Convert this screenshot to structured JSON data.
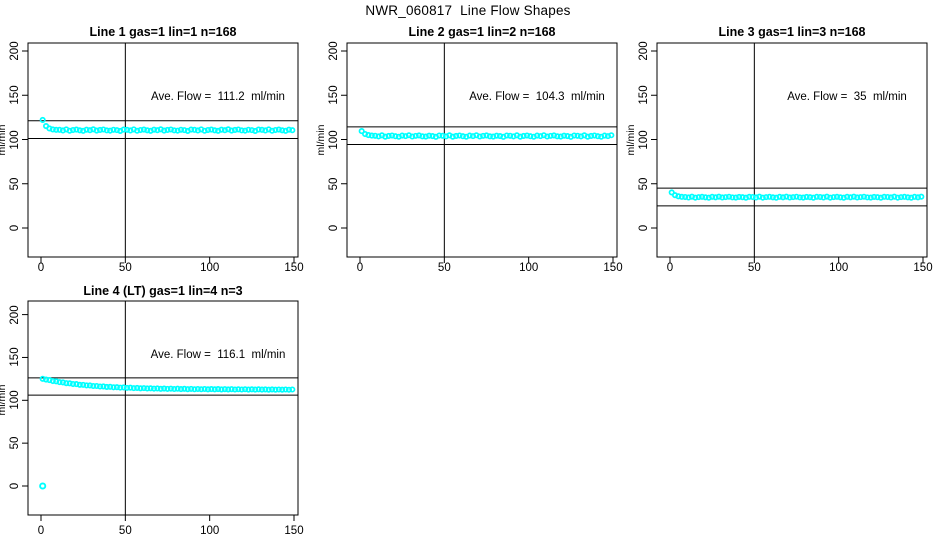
{
  "title": "NWR_060817  Line Flow Shapes",
  "chart_data": [
    {
      "type": "scatter",
      "title": "Line 1 gas=1 lin=1 n=168",
      "annotation": "Ave. Flow =  111.2  ml/min",
      "ave_flow_ml_min": 111.2,
      "n": 168,
      "ylabel": "ml/min",
      "x_ticks": [
        0,
        50,
        100,
        150
      ],
      "y_ticks": [
        0,
        50,
        100,
        150,
        200
      ],
      "xlim": [
        -8,
        160
      ],
      "ylim": [
        -33,
        209
      ],
      "grid": false,
      "marker_color": "#00FFFF",
      "line_color": "#000000",
      "ref_line_x": 50,
      "ref_lines_y": [
        101.2,
        121.2
      ],
      "x_start": 1,
      "x_step": 2,
      "y": [
        122.1,
        115.2,
        112.5,
        111.4,
        110.9,
        110.9,
        110.2,
        111.4,
        109.9,
        110.7,
        111.2,
        110.4,
        109.8,
        111.1,
        110.5,
        111.5,
        110.1,
        110.8,
        111.3,
        110.3,
        110.0,
        111.0,
        110.6,
        109.7,
        111.2,
        110.9,
        110.2,
        111.4,
        109.9,
        110.7,
        111.2,
        110.4,
        109.8,
        111.1,
        110.5,
        111.5,
        110.1,
        110.8,
        111.3,
        110.3,
        110.0,
        111.0,
        110.6,
        109.7,
        111.2,
        110.9,
        110.2,
        111.4,
        109.9,
        110.7,
        111.2,
        110.4,
        109.8,
        111.1,
        110.5,
        111.5,
        110.1,
        110.8,
        111.3,
        110.3,
        110.0,
        111.0,
        110.6,
        109.7,
        111.2,
        110.9,
        110.2,
        111.4,
        109.9,
        110.7,
        111.2,
        110.4,
        109.8,
        111.1,
        110.5
      ]
    },
    {
      "type": "scatter",
      "title": "Line 2 gas=1 lin=2 n=168",
      "annotation": "Ave. Flow =  104.3  ml/min",
      "ave_flow_ml_min": 104.3,
      "n": 168,
      "ylabel": "ml/min",
      "x_ticks": [
        0,
        50,
        100,
        150
      ],
      "y_ticks": [
        0,
        50,
        100,
        150,
        200
      ],
      "xlim": [
        -8,
        160
      ],
      "ylim": [
        -33,
        209
      ],
      "grid": false,
      "marker_color": "#00FFFF",
      "line_color": "#000000",
      "ref_line_x": 50,
      "ref_lines_y": [
        94.3,
        114.3
      ],
      "x_start": 1,
      "x_step": 2,
      "y": [
        109.5,
        106.2,
        105.0,
        104.4,
        104.2,
        103.5,
        104.7,
        103.2,
        104.0,
        104.5,
        103.7,
        103.1,
        104.4,
        103.8,
        104.8,
        103.4,
        104.1,
        104.6,
        103.6,
        103.3,
        104.3,
        103.9,
        103.0,
        104.5,
        104.2,
        103.5,
        104.7,
        103.2,
        104.0,
        104.5,
        103.7,
        103.1,
        104.4,
        103.8,
        104.8,
        103.4,
        104.1,
        104.6,
        103.6,
        103.3,
        104.3,
        103.9,
        103.0,
        104.5,
        104.2,
        103.5,
        104.7,
        103.2,
        104.0,
        104.5,
        103.7,
        103.1,
        104.4,
        103.8,
        104.8,
        103.4,
        104.1,
        104.6,
        103.6,
        103.3,
        104.3,
        103.9,
        103.0,
        104.5,
        104.2,
        103.5,
        104.7,
        103.2,
        104.0,
        104.5,
        103.7,
        103.1,
        104.4,
        103.8,
        104.8
      ]
    },
    {
      "type": "scatter",
      "title": "Line 3 gas=1 lin=3 n=168",
      "annotation": "Ave. Flow =  35  ml/min",
      "ave_flow_ml_min": 35,
      "n": 168,
      "ylabel": "ml/min",
      "x_ticks": [
        0,
        50,
        100,
        150
      ],
      "y_ticks": [
        0,
        50,
        100,
        150,
        200
      ],
      "xlim": [
        -8,
        160
      ],
      "ylim": [
        -33,
        209
      ],
      "grid": false,
      "marker_color": "#00FFFF",
      "line_color": "#000000",
      "ref_line_x": 50,
      "ref_lines_y": [
        25,
        45
      ],
      "x_start": 1,
      "x_step": 2,
      "y": [
        40.2,
        37.1,
        35.8,
        35.2,
        35.0,
        34.5,
        35.4,
        34.3,
        34.9,
        35.2,
        34.7,
        34.2,
        35.2,
        34.7,
        35.4,
        34.5,
        34.9,
        35.3,
        34.6,
        34.4,
        35.1,
        34.8,
        34.2,
        35.2,
        35.0,
        34.5,
        35.4,
        34.3,
        34.9,
        35.2,
        34.7,
        34.2,
        35.2,
        34.7,
        35.4,
        34.5,
        34.9,
        35.3,
        34.6,
        34.4,
        35.1,
        34.8,
        34.2,
        35.2,
        35.0,
        34.5,
        35.4,
        34.3,
        34.9,
        35.2,
        34.7,
        34.2,
        35.2,
        34.7,
        35.4,
        34.5,
        34.9,
        35.3,
        34.6,
        34.4,
        35.1,
        34.8,
        34.2,
        35.2,
        35.0,
        34.5,
        35.4,
        34.3,
        34.9,
        35.2,
        34.7,
        34.2,
        35.2,
        34.7,
        35.4
      ]
    },
    {
      "type": "scatter",
      "title": "Line 4 (LT) gas=1 lin=4 n=3",
      "annotation": "Ave. Flow =  116.1  ml/min",
      "ave_flow_ml_min": 116.1,
      "n": 3,
      "ylabel": "ml/min",
      "x_ticks": [
        0,
        50,
        100,
        150
      ],
      "y_ticks": [
        0,
        50,
        100,
        150,
        200
      ],
      "xlim": [
        -8,
        160
      ],
      "ylim": [
        -33,
        209
      ],
      "grid": false,
      "marker_color": "#00FFFF",
      "line_color": "#000000",
      "ref_line_x": 50,
      "ref_lines_y": [
        106.1,
        126.1
      ],
      "x_start": 1,
      "x_step": 2,
      "outlier": {
        "x": 1,
        "y": 0
      },
      "y": [
        125.1,
        124.2,
        123.6,
        122.5,
        122.1,
        121.2,
        120.9,
        120.0,
        119.8,
        119.0,
        118.9,
        118.1,
        118.0,
        117.4,
        117.3,
        116.7,
        116.7,
        116.1,
        116.2,
        115.6,
        115.7,
        115.2,
        115.3,
        114.8,
        115.0,
        114.5,
        114.7,
        114.2,
        114.4,
        114.0,
        114.2,
        113.8,
        114.0,
        113.6,
        113.8,
        113.4,
        113.7,
        113.3,
        113.6,
        113.2,
        113.5,
        113.1,
        113.4,
        113.0,
        113.3,
        112.9,
        113.2,
        112.9,
        113.2,
        112.8,
        113.1,
        112.8,
        113.1,
        112.7,
        113.0,
        112.7,
        113.0,
        112.6,
        112.9,
        112.6,
        112.9,
        112.5,
        112.8,
        112.5,
        112.8,
        112.5,
        112.7,
        112.4,
        112.7,
        112.4,
        112.6,
        112.4,
        112.6,
        112.3,
        112.6
      ]
    }
  ]
}
